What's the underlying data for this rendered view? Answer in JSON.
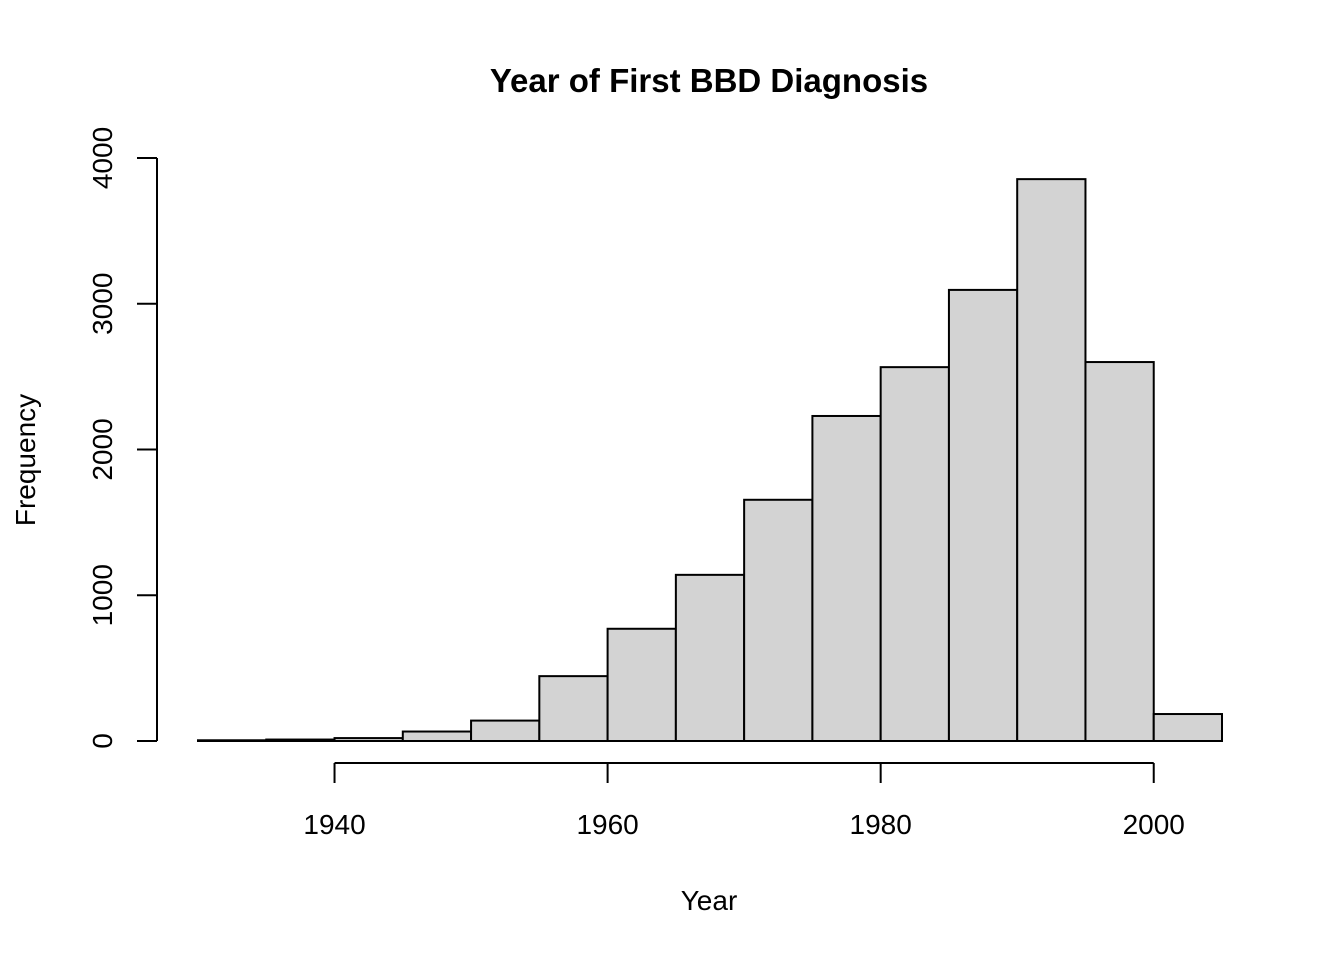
{
  "chart_data": {
    "type": "bar",
    "title": "Year of First BBD Diagnosis",
    "xlabel": "Year",
    "ylabel": "Frequency",
    "bin_edges": [
      1930,
      1935,
      1940,
      1945,
      1950,
      1955,
      1960,
      1965,
      1970,
      1975,
      1980,
      1985,
      1990,
      1995,
      2000,
      2005
    ],
    "values": [
      5,
      10,
      20,
      65,
      140,
      445,
      770,
      1140,
      1655,
      2230,
      2565,
      3095,
      3855,
      2600,
      185
    ],
    "xlim": [
      1930,
      2005
    ],
    "ylim": [
      0,
      4000
    ],
    "x_ticks": [
      1940,
      1960,
      1980,
      2000
    ],
    "x_tick_labels": [
      "1940",
      "1960",
      "1980",
      "2000"
    ],
    "y_ticks": [
      0,
      1000,
      2000,
      3000,
      4000
    ],
    "y_tick_labels": [
      "0",
      "1000",
      "2000",
      "3000",
      "4000"
    ],
    "bar_color": "#d3d3d3",
    "grid": false
  }
}
